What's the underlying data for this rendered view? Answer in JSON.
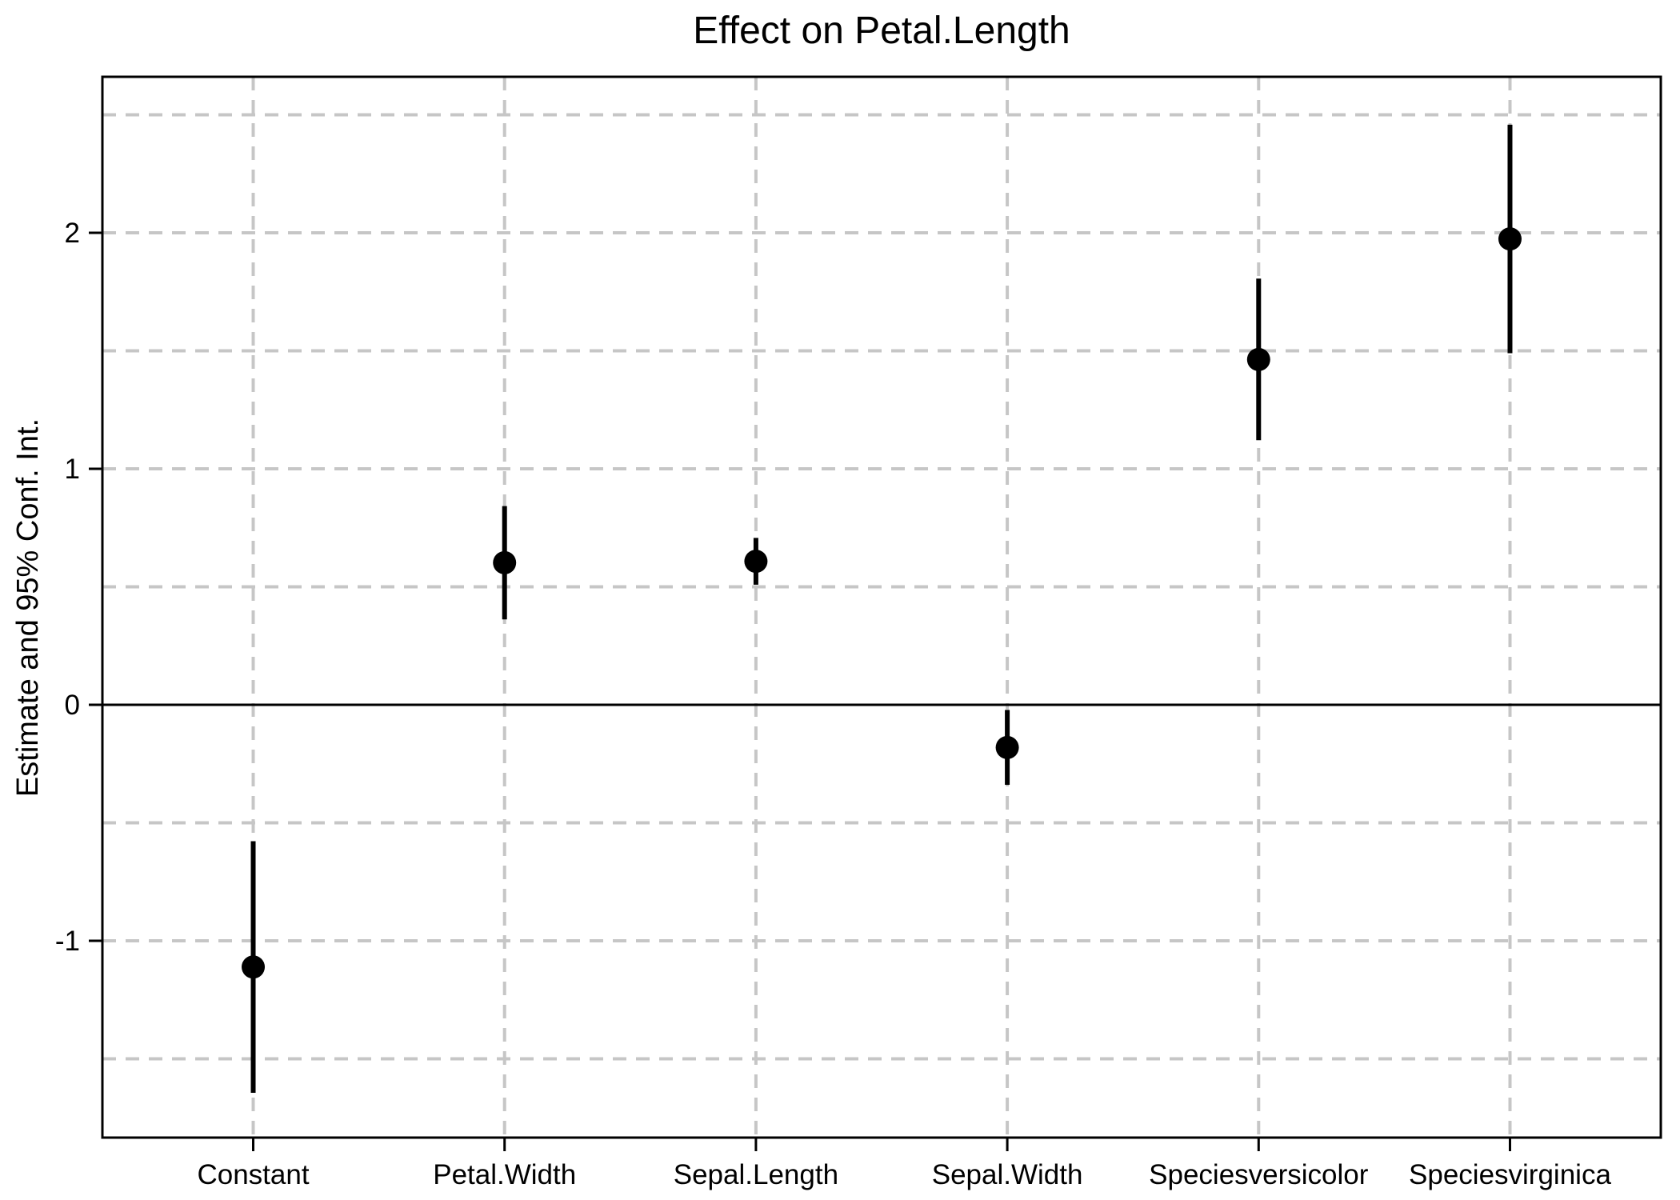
{
  "chart_data": {
    "type": "scatter",
    "subtype": "coefficient-dot-whisker",
    "title": "Effect on Petal.Length",
    "xlabel": "",
    "ylabel": "Estimate and 95% Conf. Int.",
    "categories": [
      "Constant",
      "Petal.Width",
      "Sepal.Length",
      "Sepal.Width",
      "Speciesversicolor",
      "Speciesvirginica"
    ],
    "estimates": [
      -1.111,
      0.602,
      0.608,
      -0.181,
      1.463,
      1.974
    ],
    "ci_lower": [
      -1.644,
      0.362,
      0.509,
      -0.339,
      1.121,
      1.49
    ],
    "ci_upper": [
      -0.578,
      0.842,
      0.707,
      -0.022,
      1.806,
      2.458
    ],
    "ci_level": "95%",
    "ylim": [
      -1.834,
      2.661
    ],
    "yticks": [
      -1,
      0,
      1,
      2
    ],
    "ytick_labels": [
      "-1",
      "0",
      "1",
      "2"
    ],
    "gridlines_y": [
      -1.5,
      -1,
      -0.5,
      0.5,
      1,
      1.5,
      2,
      2.5
    ],
    "zero_line_y": 0,
    "grid_on": true,
    "legend": "none",
    "colors": {
      "point": "#000000",
      "whisker": "#000000",
      "grid": "#c6c6c6",
      "axis": "#000000",
      "background": "#ffffff"
    }
  }
}
